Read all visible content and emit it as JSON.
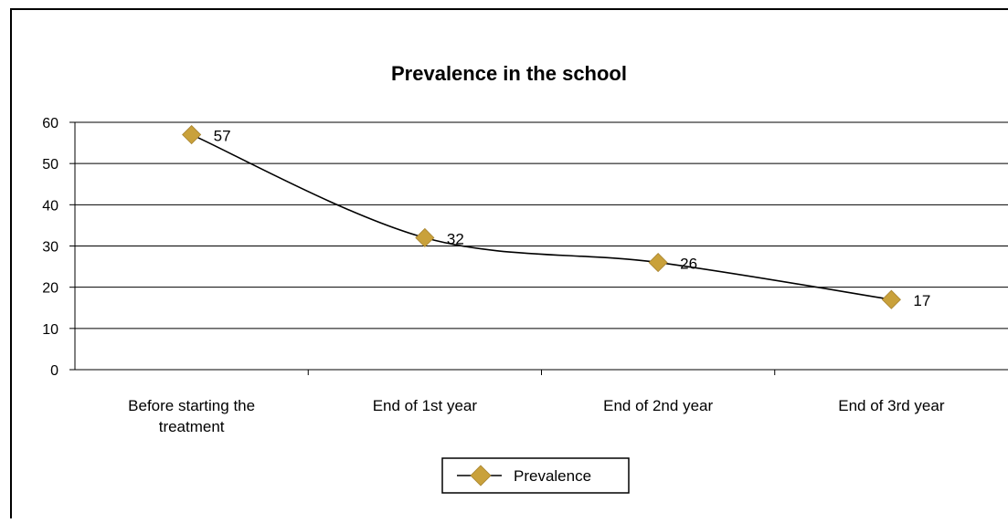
{
  "chart_data": {
    "type": "line",
    "title": "Prevalence in the school",
    "categories": [
      [
        "Before starting the",
        "treatment"
      ],
      [
        "End of 1st year"
      ],
      [
        "End of 2nd year"
      ],
      [
        "End of 3rd year"
      ]
    ],
    "series": [
      {
        "name": "Prevalence",
        "values": [
          57,
          32,
          26,
          17
        ],
        "color": "#C9A13B",
        "marker": "diamond",
        "line_color": "#000000",
        "smooth": true
      }
    ],
    "data_labels": [
      "57",
      "32",
      "26",
      "17"
    ],
    "y_ticks": [
      "0",
      "10",
      "20",
      "30",
      "40",
      "50",
      "60"
    ],
    "ylim": [
      0,
      60
    ],
    "grid": true,
    "legend_position": "bottom"
  }
}
